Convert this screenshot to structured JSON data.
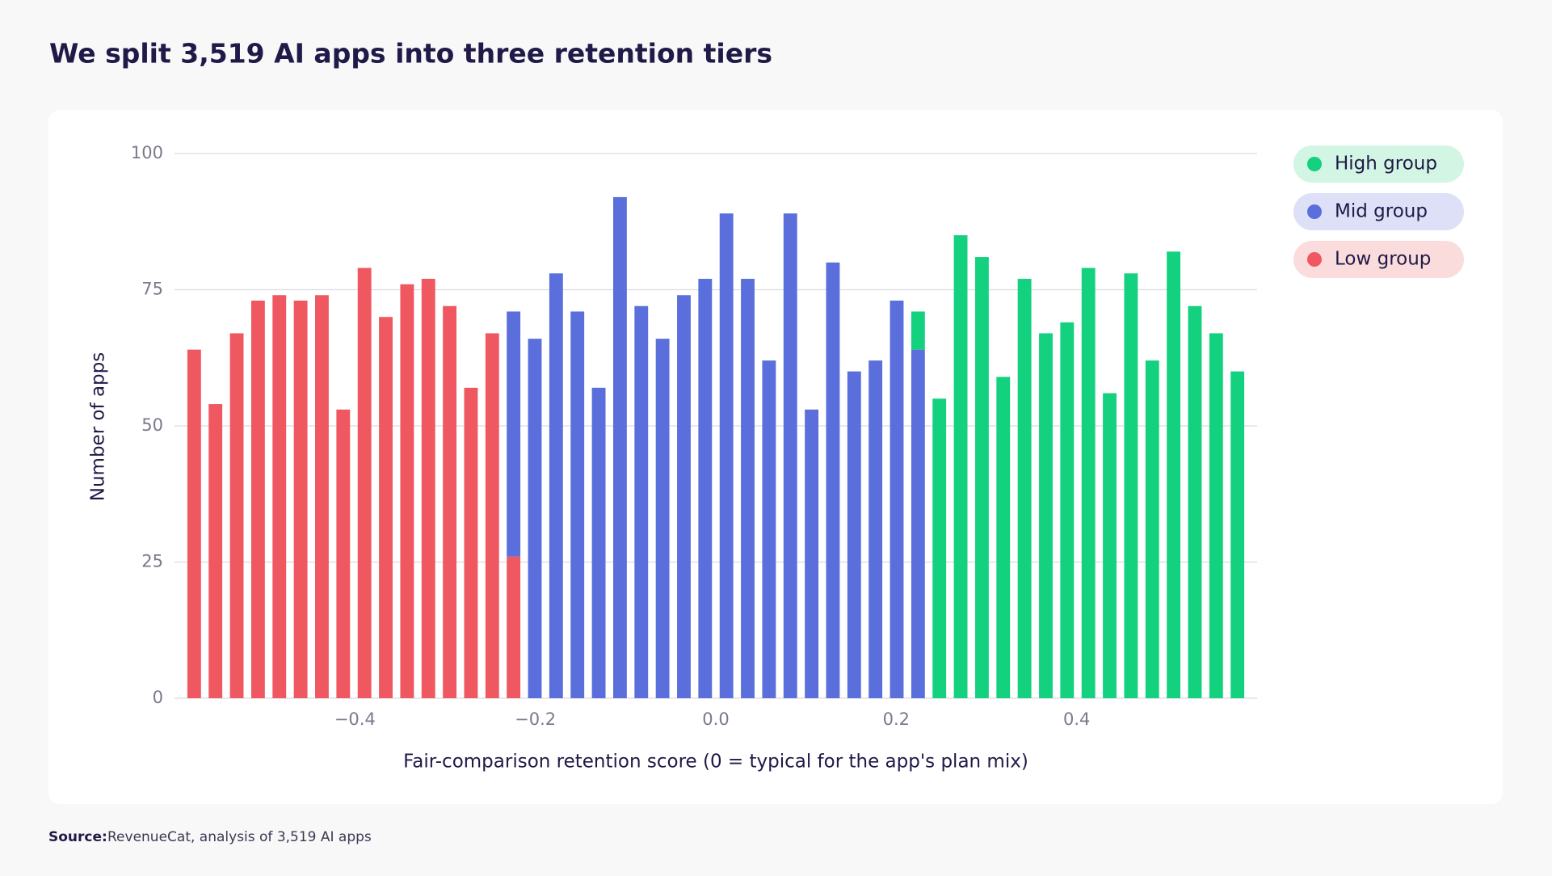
{
  "chart_data": {
    "type": "histogram",
    "title": "We split 3,519 AI apps into three retention tiers",
    "x_label": "Fair-comparison retention score (0 = typical for the app's plan mix)",
    "y_label": "Number of apps",
    "source_label": "Source:",
    "source": "RevenueCat, analysis of 3,519 AI apps",
    "bins": [
      -0.59,
      -0.5664,
      -0.5428,
      -0.5192,
      -0.4956,
      -0.472,
      -0.4484,
      -0.4248,
      -0.4012,
      -0.3776,
      -0.354,
      -0.3304,
      -0.3068,
      -0.2832,
      -0.2596,
      -0.236,
      -0.2124,
      -0.1888,
      -0.1652,
      -0.1416,
      -0.118,
      -0.0944,
      -0.0708,
      -0.0472,
      -0.0236,
      0,
      0.0236,
      0.0472,
      0.0708,
      0.0944,
      0.118,
      0.1416,
      0.1652,
      0.1888,
      0.2124,
      0.236,
      0.2596,
      0.2832,
      0.3068,
      0.3304,
      0.354,
      0.3776,
      0.4012,
      0.4248,
      0.4484,
      0.472,
      0.4956,
      0.5192,
      0.5428,
      0.5664,
      0.59
    ],
    "series": [
      {
        "name": "Low group",
        "color": "#ef5860",
        "legend_bg": "#fbdcdc",
        "values": [
          64,
          54,
          67,
          73,
          74,
          73,
          74,
          53,
          79,
          70,
          76,
          77,
          72,
          57,
          67,
          26,
          null,
          null,
          null,
          null,
          null,
          null,
          null,
          null,
          null,
          null,
          null,
          null,
          null,
          null,
          null,
          null,
          null,
          null,
          null,
          null,
          null,
          null,
          null,
          null,
          null,
          null,
          null,
          null,
          null,
          null,
          null,
          null,
          null,
          null
        ]
      },
      {
        "name": "Mid group",
        "color": "#5a6fdb",
        "legend_bg": "#dde0f7",
        "values": [
          null,
          null,
          null,
          null,
          null,
          null,
          null,
          null,
          null,
          null,
          null,
          null,
          null,
          null,
          null,
          45,
          66,
          78,
          71,
          57,
          92,
          72,
          66,
          74,
          77,
          89,
          77,
          62,
          89,
          53,
          80,
          60,
          62,
          73,
          64,
          null,
          null,
          null,
          null,
          null,
          null,
          null,
          null,
          null,
          null,
          null,
          null,
          null,
          null,
          null
        ]
      },
      {
        "name": "High group",
        "color": "#14d17f",
        "legend_bg": "#d3f5e4",
        "values": [
          null,
          null,
          null,
          null,
          null,
          null,
          null,
          null,
          null,
          null,
          null,
          null,
          null,
          null,
          null,
          null,
          null,
          null,
          null,
          null,
          null,
          null,
          null,
          null,
          null,
          null,
          null,
          null,
          null,
          null,
          null,
          null,
          null,
          null,
          7,
          55,
          85,
          81,
          59,
          77,
          67,
          69,
          79,
          56,
          78,
          62,
          82,
          72,
          67,
          60
        ]
      }
    ],
    "xlim": [
      -0.6,
      0.6
    ],
    "xticks": [
      {
        "value": -0.4,
        "label": "−0.4"
      },
      {
        "value": -0.2,
        "label": "−0.2"
      },
      {
        "value": 0,
        "label": "0.0"
      },
      0.2,
      0.4
    ],
    "ylim": [
      0,
      100
    ],
    "yticks": [
      0,
      25,
      50,
      75,
      100
    ],
    "grid": true,
    "stacked": true,
    "legend": "right"
  }
}
